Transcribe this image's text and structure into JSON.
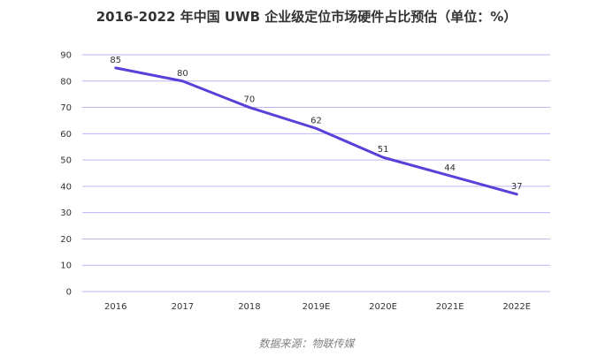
{
  "chart_data": {
    "type": "line",
    "title": "2016-2022 年中国 UWB 企业级定位市场硬件占比预估（单位：%）",
    "categories": [
      "2016",
      "2017",
      "2018",
      "2019E",
      "2020E",
      "2021E",
      "2022E"
    ],
    "series": [
      {
        "values": [
          85,
          80,
          70,
          62,
          51,
          44,
          37
        ]
      }
    ],
    "xlabel": "",
    "ylabel": "",
    "ylim": [
      0,
      90
    ],
    "yticks": [
      0,
      10,
      20,
      30,
      40,
      50,
      60,
      70,
      80,
      90
    ],
    "grid": true,
    "legend": "none",
    "line_color": "#5a3fd8",
    "grid_color": "#b9b6f2"
  },
  "source": "数据来源：物联传媒"
}
